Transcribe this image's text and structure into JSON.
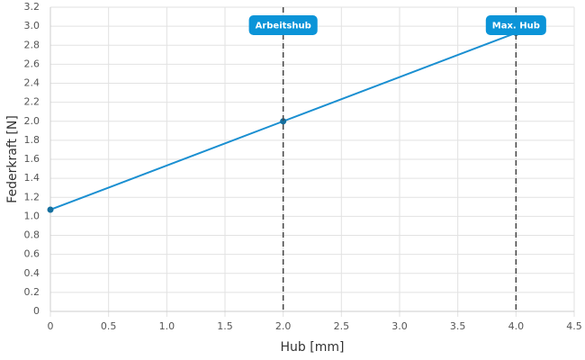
{
  "chart_data": {
    "type": "line",
    "x": [
      0,
      2,
      4
    ],
    "values": [
      1.07,
      2.0,
      2.93
    ],
    "color": "#1a8fd1",
    "xlabel": "Hub [mm]",
    "ylabel": "Federkraft [N]",
    "xlim": [
      0,
      4.5
    ],
    "ylim": [
      0,
      3.2
    ],
    "xticks": [
      0,
      0.5,
      {
        "value": 1,
        "label": "1.0"
      },
      1.5,
      {
        "value": 2,
        "label": "2.0"
      },
      2.5,
      {
        "value": 3,
        "label": "3.0"
      },
      3.5,
      {
        "value": 4,
        "label": "4.0"
      },
      4.5
    ],
    "yticks": [
      0,
      0.2,
      0.4,
      0.6,
      0.8,
      {
        "value": 1,
        "label": "1.0"
      },
      1.2,
      1.4,
      1.6,
      1.8,
      {
        "value": 2,
        "label": "2.0"
      },
      2.2,
      2.4,
      2.6,
      2.8,
      {
        "value": 3,
        "label": "3.0"
      },
      3.2
    ],
    "grid": true,
    "annotations": [
      {
        "x": 2,
        "label": "Arbeitshub"
      },
      {
        "x": 4,
        "label": "Max. Hub"
      }
    ]
  }
}
